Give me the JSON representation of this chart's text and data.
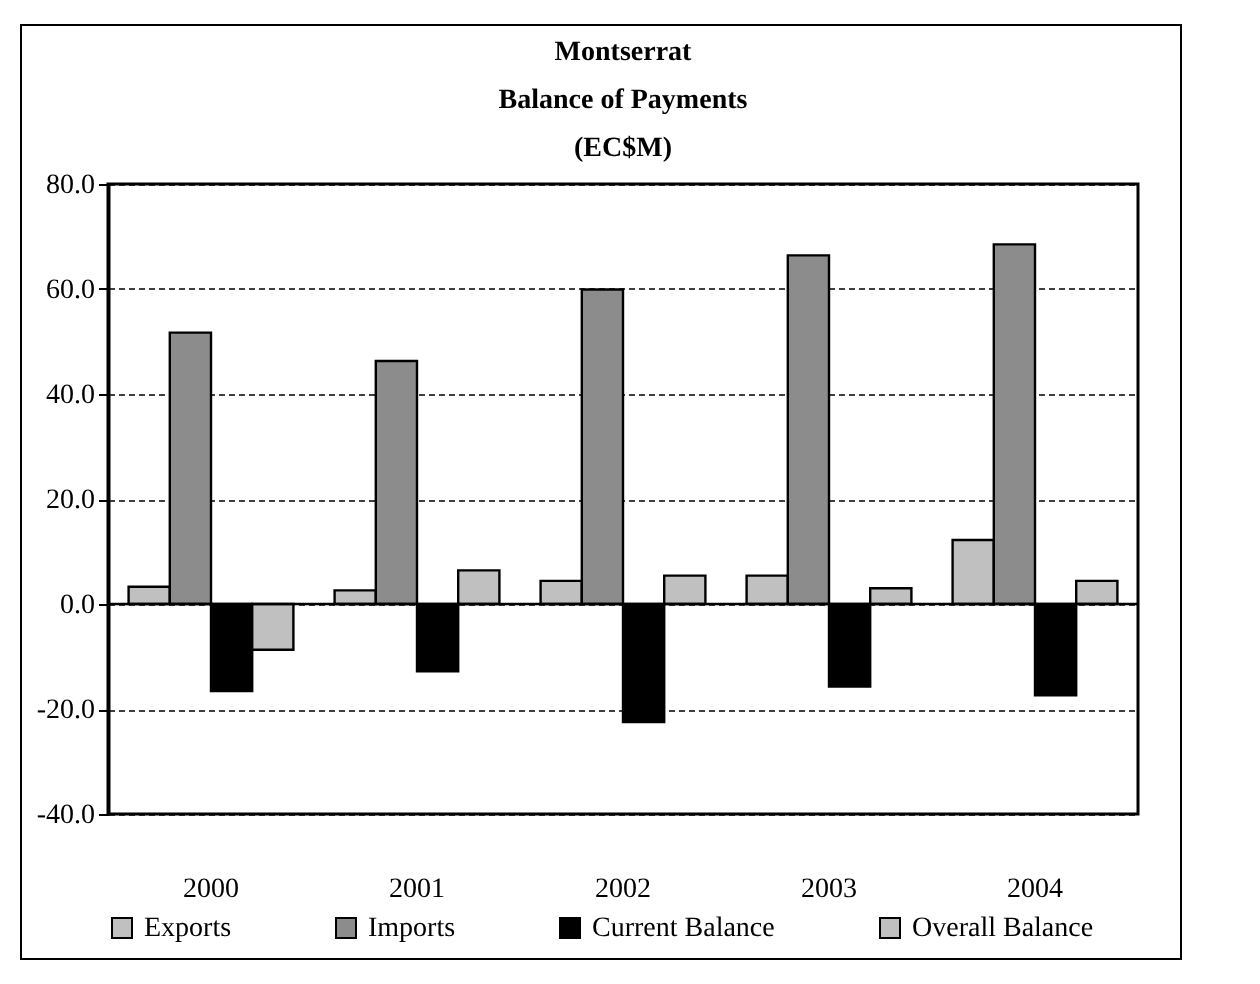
{
  "chart_data": {
    "type": "bar",
    "title": [
      "Montserrat",
      "Balance of Payments",
      "(EC$M)"
    ],
    "categories": [
      "2000",
      "2001",
      "2002",
      "2003",
      "2004"
    ],
    "series": [
      {
        "name": "Exports",
        "color": "#c0c0c0",
        "values": [
          3.3,
          2.6,
          4.4,
          5.4,
          12.2
        ]
      },
      {
        "name": "Imports",
        "color": "#8c8c8c",
        "values": [
          51.7,
          46.3,
          59.9,
          66.4,
          68.5
        ]
      },
      {
        "name": "Current Balance",
        "color": "#000000",
        "values": [
          -16.6,
          -12.8,
          -22.5,
          -15.7,
          -17.4
        ]
      },
      {
        "name": "Overall Balance",
        "color": "#c0c0c0",
        "values": [
          -8.7,
          6.4,
          5.4,
          3.0,
          4.4
        ]
      }
    ],
    "ylim": [
      -40,
      80
    ],
    "yticks": [
      {
        "value": -40,
        "label": "-40.0"
      },
      {
        "value": -20,
        "label": "-20.0"
      },
      {
        "value": 0,
        "label": "0.0"
      },
      {
        "value": 20,
        "label": "20.0"
      },
      {
        "value": 40,
        "label": "40.0"
      },
      {
        "value": 60,
        "label": "60.0"
      },
      {
        "value": 80,
        "label": "80.0"
      }
    ],
    "grid": "y",
    "legend": "bottom"
  }
}
